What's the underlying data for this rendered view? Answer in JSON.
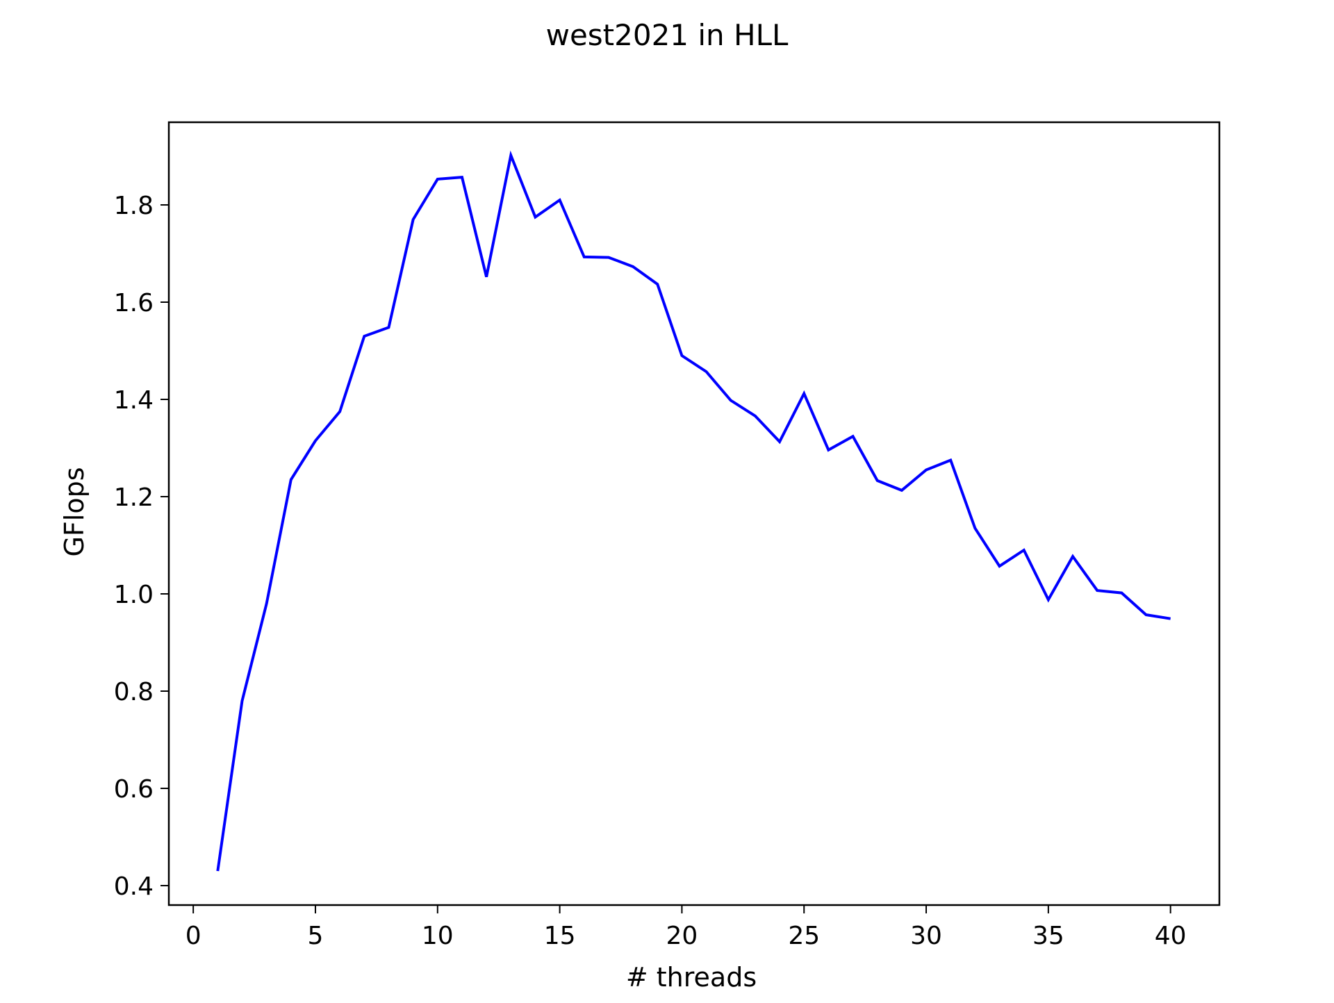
{
  "chart_data": {
    "type": "line",
    "title": "west2021 in HLL",
    "xlabel": "# threads",
    "ylabel": "GFlops",
    "xlim": [
      -1,
      42
    ],
    "ylim": [
      0.36,
      1.97
    ],
    "xticks": [
      0,
      5,
      10,
      15,
      20,
      25,
      30,
      35,
      40
    ],
    "xtick_labels": [
      "0",
      "5",
      "10",
      "15",
      "20",
      "25",
      "30",
      "35",
      "40"
    ],
    "yticks": [
      0.4,
      0.6,
      0.8,
      1.0,
      1.2,
      1.4,
      1.6,
      1.8
    ],
    "ytick_labels": [
      "0.4",
      "0.6",
      "0.8",
      "1.0",
      "1.2",
      "1.4",
      "1.6",
      "1.8"
    ],
    "grid": false,
    "series": [
      {
        "color": "#0000ff",
        "x": [
          1,
          2,
          3,
          4,
          5,
          6,
          7,
          8,
          9,
          10,
          11,
          12,
          13,
          14,
          15,
          16,
          17,
          18,
          19,
          20,
          21,
          22,
          23,
          24,
          25,
          26,
          27,
          28,
          29,
          30,
          31,
          32,
          33,
          34,
          35,
          36,
          37,
          38,
          39,
          40
        ],
        "y": [
          0.43,
          0.78,
          0.98,
          1.235,
          1.315,
          1.375,
          1.53,
          1.548,
          1.77,
          1.853,
          1.857,
          1.652,
          1.902,
          1.775,
          1.81,
          1.693,
          1.692,
          1.673,
          1.637,
          1.49,
          1.457,
          1.398,
          1.366,
          1.313,
          1.412,
          1.296,
          1.324,
          1.233,
          1.213,
          1.255,
          1.275,
          1.135,
          1.057,
          1.09,
          0.988,
          1.077,
          1.007,
          1.002,
          0.957,
          0.949
        ]
      }
    ]
  }
}
